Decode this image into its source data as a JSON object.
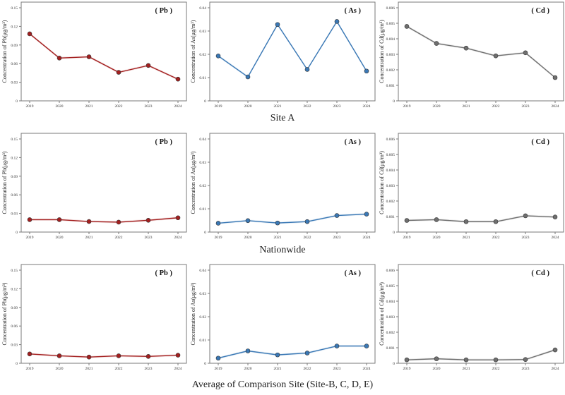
{
  "rows": [
    {
      "caption": "Site A",
      "charts": [
        {
          "type": "line",
          "title": "( Pb )",
          "ylabel": "Concentration of Pb(μg/m³)",
          "color": "#a31f1f",
          "x": [
            "2019",
            "2020",
            "2021",
            "2022",
            "2023",
            "2024"
          ],
          "yticks": [
            "0",
            "0.03",
            "0.06",
            "0.09",
            "0.12",
            "0.15"
          ],
          "ylim": [
            0,
            0.15
          ],
          "values": [
            0.108,
            0.069,
            0.071,
            0.046,
            0.057,
            0.035
          ]
        },
        {
          "type": "line",
          "title": "( As )",
          "ylabel": "Concentration of As(μg/m³)",
          "color": "#3a78b5",
          "x": [
            "2019",
            "2020",
            "2021",
            "2022",
            "2023",
            "2024"
          ],
          "yticks": [
            "0",
            "0.01",
            "0.02",
            "0.03",
            "0.04"
          ],
          "ylim": [
            0,
            0.04
          ],
          "values": [
            0.0193,
            0.0103,
            0.0328,
            0.0135,
            0.0341,
            0.0128
          ]
        },
        {
          "type": "line",
          "title": "( Cd )",
          "ylabel": "Concentration of Cd(μg/m³)",
          "color": "#6f6f6f",
          "x": [
            "2019",
            "2020",
            "2021",
            "2022",
            "2023",
            "2024"
          ],
          "yticks": [
            "0",
            "0.001",
            "0.002",
            "0.003",
            "0.004",
            "0.005",
            "0.006"
          ],
          "ylim": [
            0,
            0.006
          ],
          "values": [
            0.0048,
            0.0037,
            0.0034,
            0.0029,
            0.0031,
            0.0015
          ]
        }
      ]
    },
    {
      "caption": "Nationwide",
      "charts": [
        {
          "type": "line",
          "title": "( Pb )",
          "ylabel": "Concentration of Pb(μg/m³)",
          "color": "#a31f1f",
          "x": [
            "2019",
            "2020",
            "2021",
            "2022",
            "2023",
            "2024"
          ],
          "yticks": [
            "0",
            "0.03",
            "0.06",
            "0.09",
            "0.12",
            "0.15"
          ],
          "ylim": [
            0,
            0.15
          ],
          "values": [
            0.02,
            0.02,
            0.017,
            0.016,
            0.019,
            0.023
          ]
        },
        {
          "type": "line",
          "title": "( As )",
          "ylabel": "Concentration of As(μg/m³)",
          "color": "#3a78b5",
          "x": [
            "2019",
            "2020",
            "2021",
            "2022",
            "2023",
            "2024"
          ],
          "yticks": [
            "0",
            "0.01",
            "0.02",
            "0.03",
            "0.04"
          ],
          "ylim": [
            0,
            0.04
          ],
          "values": [
            0.0038,
            0.0049,
            0.0039,
            0.0045,
            0.0071,
            0.0077
          ]
        },
        {
          "type": "line",
          "title": "( Cd )",
          "ylabel": "Concentration of Cd(μg/m³)",
          "color": "#6f6f6f",
          "x": [
            "2019",
            "2020",
            "2021",
            "2022",
            "2023",
            "2024"
          ],
          "yticks": [
            "0",
            "0.001",
            "0.002",
            "0.003",
            "0.004",
            "0.005",
            "0.006"
          ],
          "ylim": [
            0,
            0.006
          ],
          "values": [
            0.00075,
            0.0008,
            0.00067,
            0.00067,
            0.00105,
            0.00097
          ]
        }
      ]
    },
    {
      "caption": "Average of Comparison Site (Site-B, C, D, E)",
      "charts": [
        {
          "type": "line",
          "title": "( Pb )",
          "ylabel": "Concentration of Pb(μg/m³)",
          "color": "#a31f1f",
          "x": [
            "2019",
            "2020",
            "2021",
            "2022",
            "2023",
            "2024"
          ],
          "yticks": [
            "0",
            "0.03",
            "0.06",
            "0.09",
            "0.12",
            "0.15"
          ],
          "ylim": [
            0,
            0.15
          ],
          "values": [
            0.015,
            0.012,
            0.01,
            0.012,
            0.011,
            0.013
          ]
        },
        {
          "type": "line",
          "title": "( As )",
          "ylabel": "Concentration of As(μg/m³)",
          "color": "#3a78b5",
          "x": [
            "2019",
            "2020",
            "2021",
            "2022",
            "2023",
            "2024"
          ],
          "yticks": [
            "0",
            "0.01",
            "0.02",
            "0.03",
            "0.04"
          ],
          "ylim": [
            0,
            0.04
          ],
          "values": [
            0.0022,
            0.0053,
            0.0036,
            0.0044,
            0.0074,
            0.0074
          ]
        },
        {
          "type": "line",
          "title": "( Cd )",
          "ylabel": "Concentration of Cd(μg/m³)",
          "color": "#6f6f6f",
          "x": [
            "2019",
            "2020",
            "2021",
            "2022",
            "2023",
            "2024"
          ],
          "yticks": [
            "0",
            "0.001",
            "0.002",
            "0.003",
            "0.004",
            "0.005",
            "0.006"
          ],
          "ylim": [
            0,
            0.006
          ],
          "values": [
            0.00022,
            0.00029,
            0.00022,
            0.00022,
            0.00024,
            0.00086
          ]
        }
      ]
    }
  ]
}
